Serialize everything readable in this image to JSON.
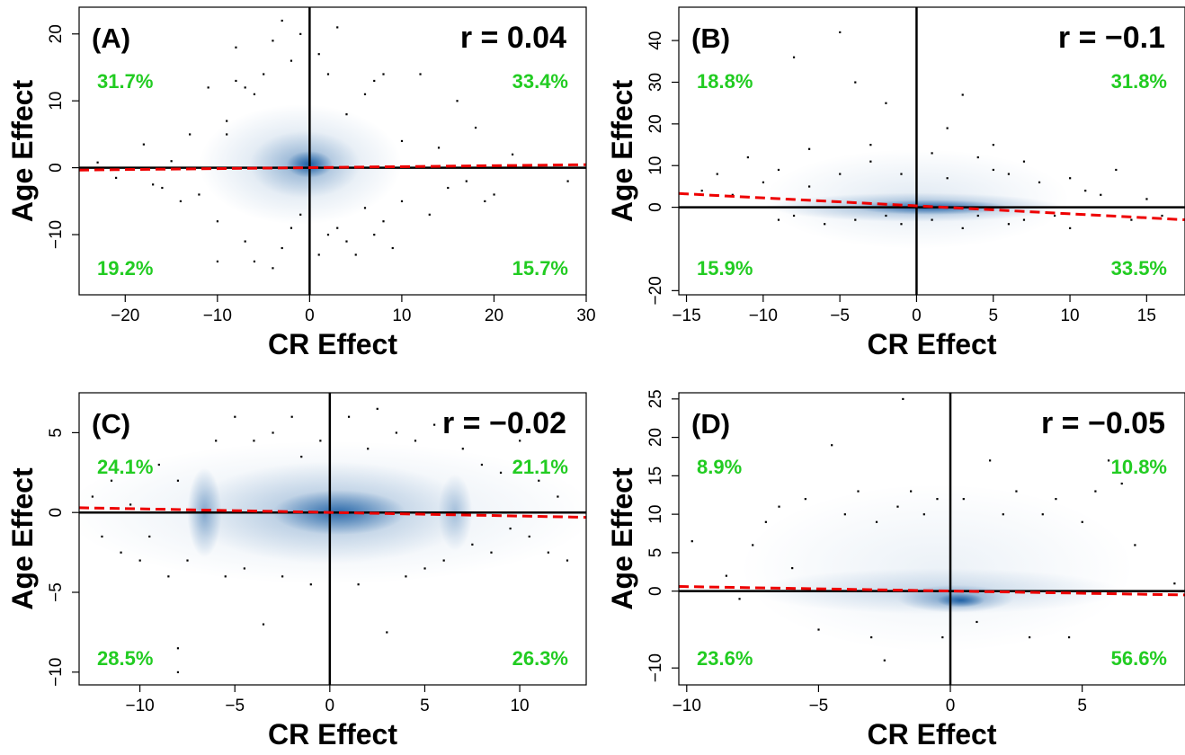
{
  "chart_data": [
    {
      "type": "scatter",
      "panel_label": "(A)",
      "r_label": "r = 0.04",
      "xlabel": "CR Effect",
      "ylabel": "Age Effect",
      "xlim": [
        -25,
        30
      ],
      "ylim": [
        -19,
        24
      ],
      "xticks": [
        -20,
        -10,
        0,
        10,
        20,
        30
      ],
      "yticks": [
        -10,
        0,
        10,
        20
      ],
      "xtick_labels": [
        "−20",
        "−10",
        "0",
        "10",
        "20",
        "30"
      ],
      "ytick_labels": [
        "−10",
        "0",
        "10",
        "20"
      ],
      "quadrant_percentages": {
        "upper_left": "31.7%",
        "upper_right": "33.4%",
        "lower_left": "19.2%",
        "lower_right": "15.7%"
      },
      "fit_line": {
        "x": [
          -25,
          30
        ],
        "y": [
          -0.35,
          0.45
        ]
      },
      "density_blobs": [
        {
          "cx": -1,
          "cy": 0.5,
          "rx": 11,
          "ry": 9,
          "alpha": 0.22
        },
        {
          "cx": -0.5,
          "cy": 0.5,
          "rx": 6,
          "ry": 5,
          "alpha": 0.35
        },
        {
          "cx": 0,
          "cy": 0.5,
          "rx": 2.5,
          "ry": 2,
          "alpha": 0.85
        }
      ],
      "points": [
        [
          -23,
          0.8
        ],
        [
          -21,
          -1.5
        ],
        [
          -18,
          3.5
        ],
        [
          -17,
          -2.5
        ],
        [
          -16,
          -3
        ],
        [
          -15,
          1
        ],
        [
          -14,
          -5
        ],
        [
          -13,
          5
        ],
        [
          -12,
          -4
        ],
        [
          -11,
          12
        ],
        [
          -10,
          -8
        ],
        [
          -10,
          -14
        ],
        [
          -9,
          7
        ],
        [
          -9,
          5
        ],
        [
          -8,
          18
        ],
        [
          -8,
          13
        ],
        [
          -7,
          12
        ],
        [
          -7,
          -11
        ],
        [
          -6,
          -14
        ],
        [
          -6,
          11
        ],
        [
          -5,
          14
        ],
        [
          -4,
          -15
        ],
        [
          -4,
          19
        ],
        [
          -3,
          -12
        ],
        [
          -3,
          22
        ],
        [
          -2,
          16
        ],
        [
          -2,
          -9
        ],
        [
          -1,
          20
        ],
        [
          -1,
          -7
        ],
        [
          1,
          17
        ],
        [
          1,
          -13
        ],
        [
          2,
          -10
        ],
        [
          2,
          14
        ],
        [
          3,
          21
        ],
        [
          3,
          -9
        ],
        [
          4,
          8
        ],
        [
          4,
          -11
        ],
        [
          5,
          -13
        ],
        [
          6,
          11
        ],
        [
          6,
          -6
        ],
        [
          7,
          -10
        ],
        [
          7,
          13
        ],
        [
          8,
          -8
        ],
        [
          8,
          14
        ],
        [
          9,
          -12
        ],
        [
          10,
          4
        ],
        [
          10,
          -5
        ],
        [
          12,
          14
        ],
        [
          13,
          -7
        ],
        [
          14,
          3
        ],
        [
          15,
          -3
        ],
        [
          16,
          10
        ],
        [
          17,
          -2
        ],
        [
          18,
          6
        ],
        [
          19,
          -5
        ],
        [
          20,
          -4
        ],
        [
          22,
          2
        ],
        [
          28,
          -2
        ]
      ]
    },
    {
      "type": "scatter",
      "panel_label": "(B)",
      "r_label": "r = −0.1",
      "xlabel": "CR Effect",
      "ylabel": "Age Effect",
      "xlim": [
        -15.5,
        17.5
      ],
      "ylim": [
        -21,
        48
      ],
      "xticks": [
        -15,
        -10,
        -5,
        0,
        5,
        10,
        15
      ],
      "yticks": [
        -20,
        0,
        10,
        20,
        30,
        40
      ],
      "xtick_labels": [
        "−15",
        "−10",
        "−5",
        "0",
        "5",
        "10",
        "15"
      ],
      "ytick_labels": [
        "−20",
        "0",
        "10",
        "20",
        "30",
        "40"
      ],
      "quadrant_percentages": {
        "upper_left": "18.8%",
        "upper_right": "31.8%",
        "lower_left": "15.9%",
        "lower_right": "33.5%"
      },
      "fit_line": {
        "x": [
          -15.5,
          17.5
        ],
        "y": [
          3.3,
          -3.0
        ]
      },
      "density_blobs": [
        {
          "cx": 0,
          "cy": 2,
          "rx": 10,
          "ry": 12,
          "alpha": 0.12
        },
        {
          "cx": 0,
          "cy": 0,
          "rx": 9.5,
          "ry": 3.5,
          "alpha": 0.4
        },
        {
          "cx": 1,
          "cy": 0,
          "rx": 5,
          "ry": 1.8,
          "alpha": 0.75
        }
      ],
      "points": [
        [
          -14,
          4
        ],
        [
          -13,
          8
        ],
        [
          -12,
          3
        ],
        [
          -11,
          12
        ],
        [
          -10,
          6
        ],
        [
          -9,
          -3
        ],
        [
          -9,
          9
        ],
        [
          -8,
          36
        ],
        [
          -8,
          -2
        ],
        [
          -7,
          5
        ],
        [
          -7,
          14
        ],
        [
          -6,
          -4
        ],
        [
          -5,
          42
        ],
        [
          -5,
          8
        ],
        [
          -4,
          30
        ],
        [
          -4,
          -3
        ],
        [
          -3,
          15
        ],
        [
          -3,
          11
        ],
        [
          -2,
          -2
        ],
        [
          -2,
          25
        ],
        [
          -1,
          8
        ],
        [
          -1,
          -4
        ],
        [
          1,
          13
        ],
        [
          1,
          -3
        ],
        [
          2,
          7
        ],
        [
          2,
          19
        ],
        [
          3,
          -5
        ],
        [
          3,
          27
        ],
        [
          4,
          12
        ],
        [
          4,
          -2
        ],
        [
          5,
          9
        ],
        [
          5,
          15
        ],
        [
          6,
          -4
        ],
        [
          6,
          8
        ],
        [
          7,
          11
        ],
        [
          7,
          -3
        ],
        [
          8,
          6
        ],
        [
          9,
          -2
        ],
        [
          10,
          7
        ],
        [
          10,
          -5
        ],
        [
          11,
          4
        ],
        [
          12,
          3
        ],
        [
          13,
          9
        ],
        [
          14,
          -3
        ],
        [
          15,
          2
        ],
        [
          16,
          -2
        ]
      ]
    },
    {
      "type": "scatter",
      "panel_label": "(C)",
      "r_label": "r = −0.02",
      "xlabel": "CR Effect",
      "ylabel": "Age Effect",
      "xlim": [
        -13.2,
        13.5
      ],
      "ylim": [
        -10.8,
        7.5
      ],
      "xticks": [
        -10,
        -5,
        0,
        5,
        10
      ],
      "yticks": [
        -10,
        -5,
        0,
        5
      ],
      "xtick_labels": [
        "−10",
        "−5",
        "0",
        "5",
        "10"
      ],
      "ytick_labels": [
        "−10",
        "−5",
        "0",
        "5"
      ],
      "quadrant_percentages": {
        "upper_left": "24.1%",
        "upper_right": "21.1%",
        "lower_left": "28.5%",
        "lower_right": "26.3%"
      },
      "fit_line": {
        "x": [
          -13.2,
          13.5
        ],
        "y": [
          0.3,
          -0.3
        ]
      },
      "density_blobs": [
        {
          "cx": 0,
          "cy": 0,
          "rx": 14,
          "ry": 4.5,
          "alpha": 0.12
        },
        {
          "cx": 0,
          "cy": 0,
          "rx": 7.5,
          "ry": 3.2,
          "alpha": 0.3
        },
        {
          "cx": -6.6,
          "cy": 0,
          "rx": 0.9,
          "ry": 2.8,
          "alpha": 0.45
        },
        {
          "cx": 6.6,
          "cy": 0,
          "rx": 0.9,
          "ry": 2.4,
          "alpha": 0.3
        },
        {
          "cx": 0.5,
          "cy": 0,
          "rx": 3.5,
          "ry": 1.4,
          "alpha": 0.75
        }
      ],
      "points": [
        [
          -12.5,
          1
        ],
        [
          -12,
          -1.5
        ],
        [
          -11.5,
          2
        ],
        [
          -11,
          -2.5
        ],
        [
          -10.5,
          0.5
        ],
        [
          -10,
          -3
        ],
        [
          -9.5,
          -1.5
        ],
        [
          -9,
          3
        ],
        [
          -8.5,
          -4
        ],
        [
          -8,
          2
        ],
        [
          -8,
          -8.5
        ],
        [
          -8,
          -10
        ],
        [
          -7.5,
          -3
        ],
        [
          -6,
          4.5
        ],
        [
          -5.5,
          -4
        ],
        [
          -5,
          6
        ],
        [
          -4.5,
          -3.5
        ],
        [
          -4,
          4.5
        ],
        [
          -3.5,
          -7
        ],
        [
          -3,
          5
        ],
        [
          -2.5,
          -4
        ],
        [
          -2,
          6
        ],
        [
          -1.5,
          3.5
        ],
        [
          -1,
          -4.5
        ],
        [
          -0.5,
          4.5
        ],
        [
          1,
          6
        ],
        [
          1.5,
          -4.5
        ],
        [
          2,
          4
        ],
        [
          2.5,
          6.5
        ],
        [
          3,
          -7.5
        ],
        [
          3.5,
          5
        ],
        [
          4,
          -4
        ],
        [
          4.5,
          4.5
        ],
        [
          5,
          -3.5
        ],
        [
          5.5,
          5.5
        ],
        [
          6,
          -3
        ],
        [
          7,
          4
        ],
        [
          7.5,
          -2
        ],
        [
          8,
          3
        ],
        [
          8.5,
          -2.5
        ],
        [
          9,
          2.5
        ],
        [
          9.5,
          -1
        ],
        [
          10,
          4.5
        ],
        [
          10.5,
          -1.5
        ],
        [
          11,
          2
        ],
        [
          11.5,
          -2.5
        ],
        [
          12,
          1
        ],
        [
          12.5,
          -3
        ]
      ]
    },
    {
      "type": "scatter",
      "panel_label": "(D)",
      "r_label": "r = −0.05",
      "xlabel": "CR Effect",
      "ylabel": "Age Effect",
      "xlim": [
        -10.3,
        8.9
      ],
      "ylim": [
        -12.2,
        25.8
      ],
      "xticks": [
        -10,
        -5,
        0,
        5
      ],
      "yticks": [
        -10,
        0,
        5,
        10,
        15,
        20,
        25
      ],
      "xtick_labels": [
        "−10",
        "−5",
        "0",
        "5"
      ],
      "ytick_labels": [
        "−10",
        "0",
        "5",
        "10",
        "15",
        "20",
        "25"
      ],
      "quadrant_percentages": {
        "upper_left": "8.9%",
        "upper_right": "10.8%",
        "lower_left": "23.6%",
        "lower_right": "56.6%"
      },
      "fit_line": {
        "x": [
          -10.3,
          8.9
        ],
        "y": [
          0.6,
          -0.5
        ]
      },
      "density_blobs": [
        {
          "cx": -0.5,
          "cy": 3,
          "rx": 7.5,
          "ry": 11,
          "alpha": 0.08
        },
        {
          "cx": -0.5,
          "cy": 0,
          "rx": 7,
          "ry": 3,
          "alpha": 0.2
        },
        {
          "cx": 0.2,
          "cy": -1,
          "rx": 2.2,
          "ry": 1.8,
          "alpha": 0.5
        },
        {
          "cx": 0.4,
          "cy": -1.2,
          "rx": 0.9,
          "ry": 0.9,
          "alpha": 0.8
        }
      ],
      "points": [
        [
          -9.8,
          6.5
        ],
        [
          -8.5,
          2
        ],
        [
          -8,
          -1
        ],
        [
          -7.5,
          6
        ],
        [
          -7,
          9
        ],
        [
          -6.5,
          11
        ],
        [
          -6,
          3
        ],
        [
          -5.5,
          12
        ],
        [
          -5,
          -5
        ],
        [
          -4.5,
          19
        ],
        [
          -4,
          10
        ],
        [
          -3.5,
          13
        ],
        [
          -3,
          -6
        ],
        [
          -2.8,
          9
        ],
        [
          -2.5,
          -9
        ],
        [
          -2,
          11
        ],
        [
          -1.8,
          25
        ],
        [
          -1.5,
          13
        ],
        [
          -1,
          10
        ],
        [
          -0.5,
          12
        ],
        [
          -0.3,
          -6
        ],
        [
          0.5,
          12
        ],
        [
          1,
          -4
        ],
        [
          1.5,
          17
        ],
        [
          2,
          10
        ],
        [
          2.5,
          13
        ],
        [
          3,
          -6
        ],
        [
          3.5,
          10
        ],
        [
          4,
          12
        ],
        [
          4.5,
          -6
        ],
        [
          5,
          9
        ],
        [
          5.5,
          13
        ],
        [
          6,
          17
        ],
        [
          6.5,
          14
        ],
        [
          7,
          6
        ],
        [
          8.5,
          1
        ]
      ]
    }
  ],
  "colors": {
    "density": "#08519c",
    "points": "#000000",
    "percentages": "#22cc22",
    "fit_line": "#ee0000",
    "axes": "#000000"
  }
}
